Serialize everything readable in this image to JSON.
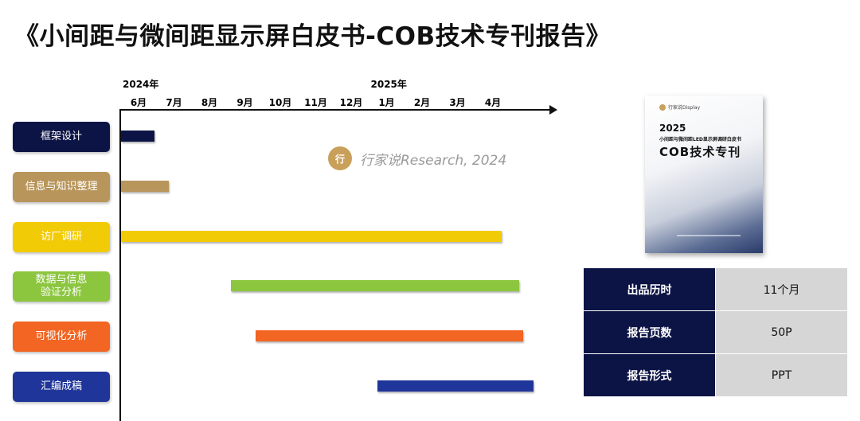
{
  "title": "《小间距与微间距显示屏白皮书-COB技术专刊报告》",
  "colors": {
    "navy": "#0c1445",
    "tan": "#b8955a",
    "yellow": "#f2cb07",
    "green": "#8cc63f",
    "orange": "#f26522",
    "blue": "#1f3599"
  },
  "chart_data": {
    "type": "gantt",
    "year_labels": [
      {
        "label": "2024年",
        "at": "6月"
      },
      {
        "label": "2025年",
        "at": "1月"
      }
    ],
    "months": [
      "6月",
      "7月",
      "8月",
      "9月",
      "10月",
      "11月",
      "12月",
      "1月",
      "2月",
      "3月",
      "4月"
    ],
    "tasks": [
      {
        "name": "框架设计",
        "start": 0.0,
        "end": 0.45,
        "color": "#0c1445"
      },
      {
        "name": "信息与知识整理",
        "start": 0.0,
        "end": 0.85,
        "color": "#b8955a"
      },
      {
        "name": "访厂调研",
        "start": 0.0,
        "end": 10.25,
        "color": "#f2cb07"
      },
      {
        "name": "数据与信息\n验证分析",
        "start": 2.6,
        "end": 10.75,
        "color": "#8cc63f"
      },
      {
        "name": "可视化分析",
        "start": 3.3,
        "end": 10.85,
        "color": "#f26522"
      },
      {
        "name": "汇编成稿",
        "start": 6.75,
        "end": 11.15,
        "color": "#1f3599"
      }
    ]
  },
  "watermark": {
    "icon": "ijia-logo-icon",
    "logo_text": "行",
    "text": "行家说Research, 2024"
  },
  "cover": {
    "brand": "行家说Display",
    "year": "2025",
    "subtitle": "小间距与微间距LED显示屏调研白皮书",
    "main": "COB技术专刊"
  },
  "info_table": [
    {
      "key": "出品历时",
      "value": "11个月"
    },
    {
      "key": "报告页数",
      "value": "50P"
    },
    {
      "key": "报告形式",
      "value": "PPT"
    }
  ]
}
